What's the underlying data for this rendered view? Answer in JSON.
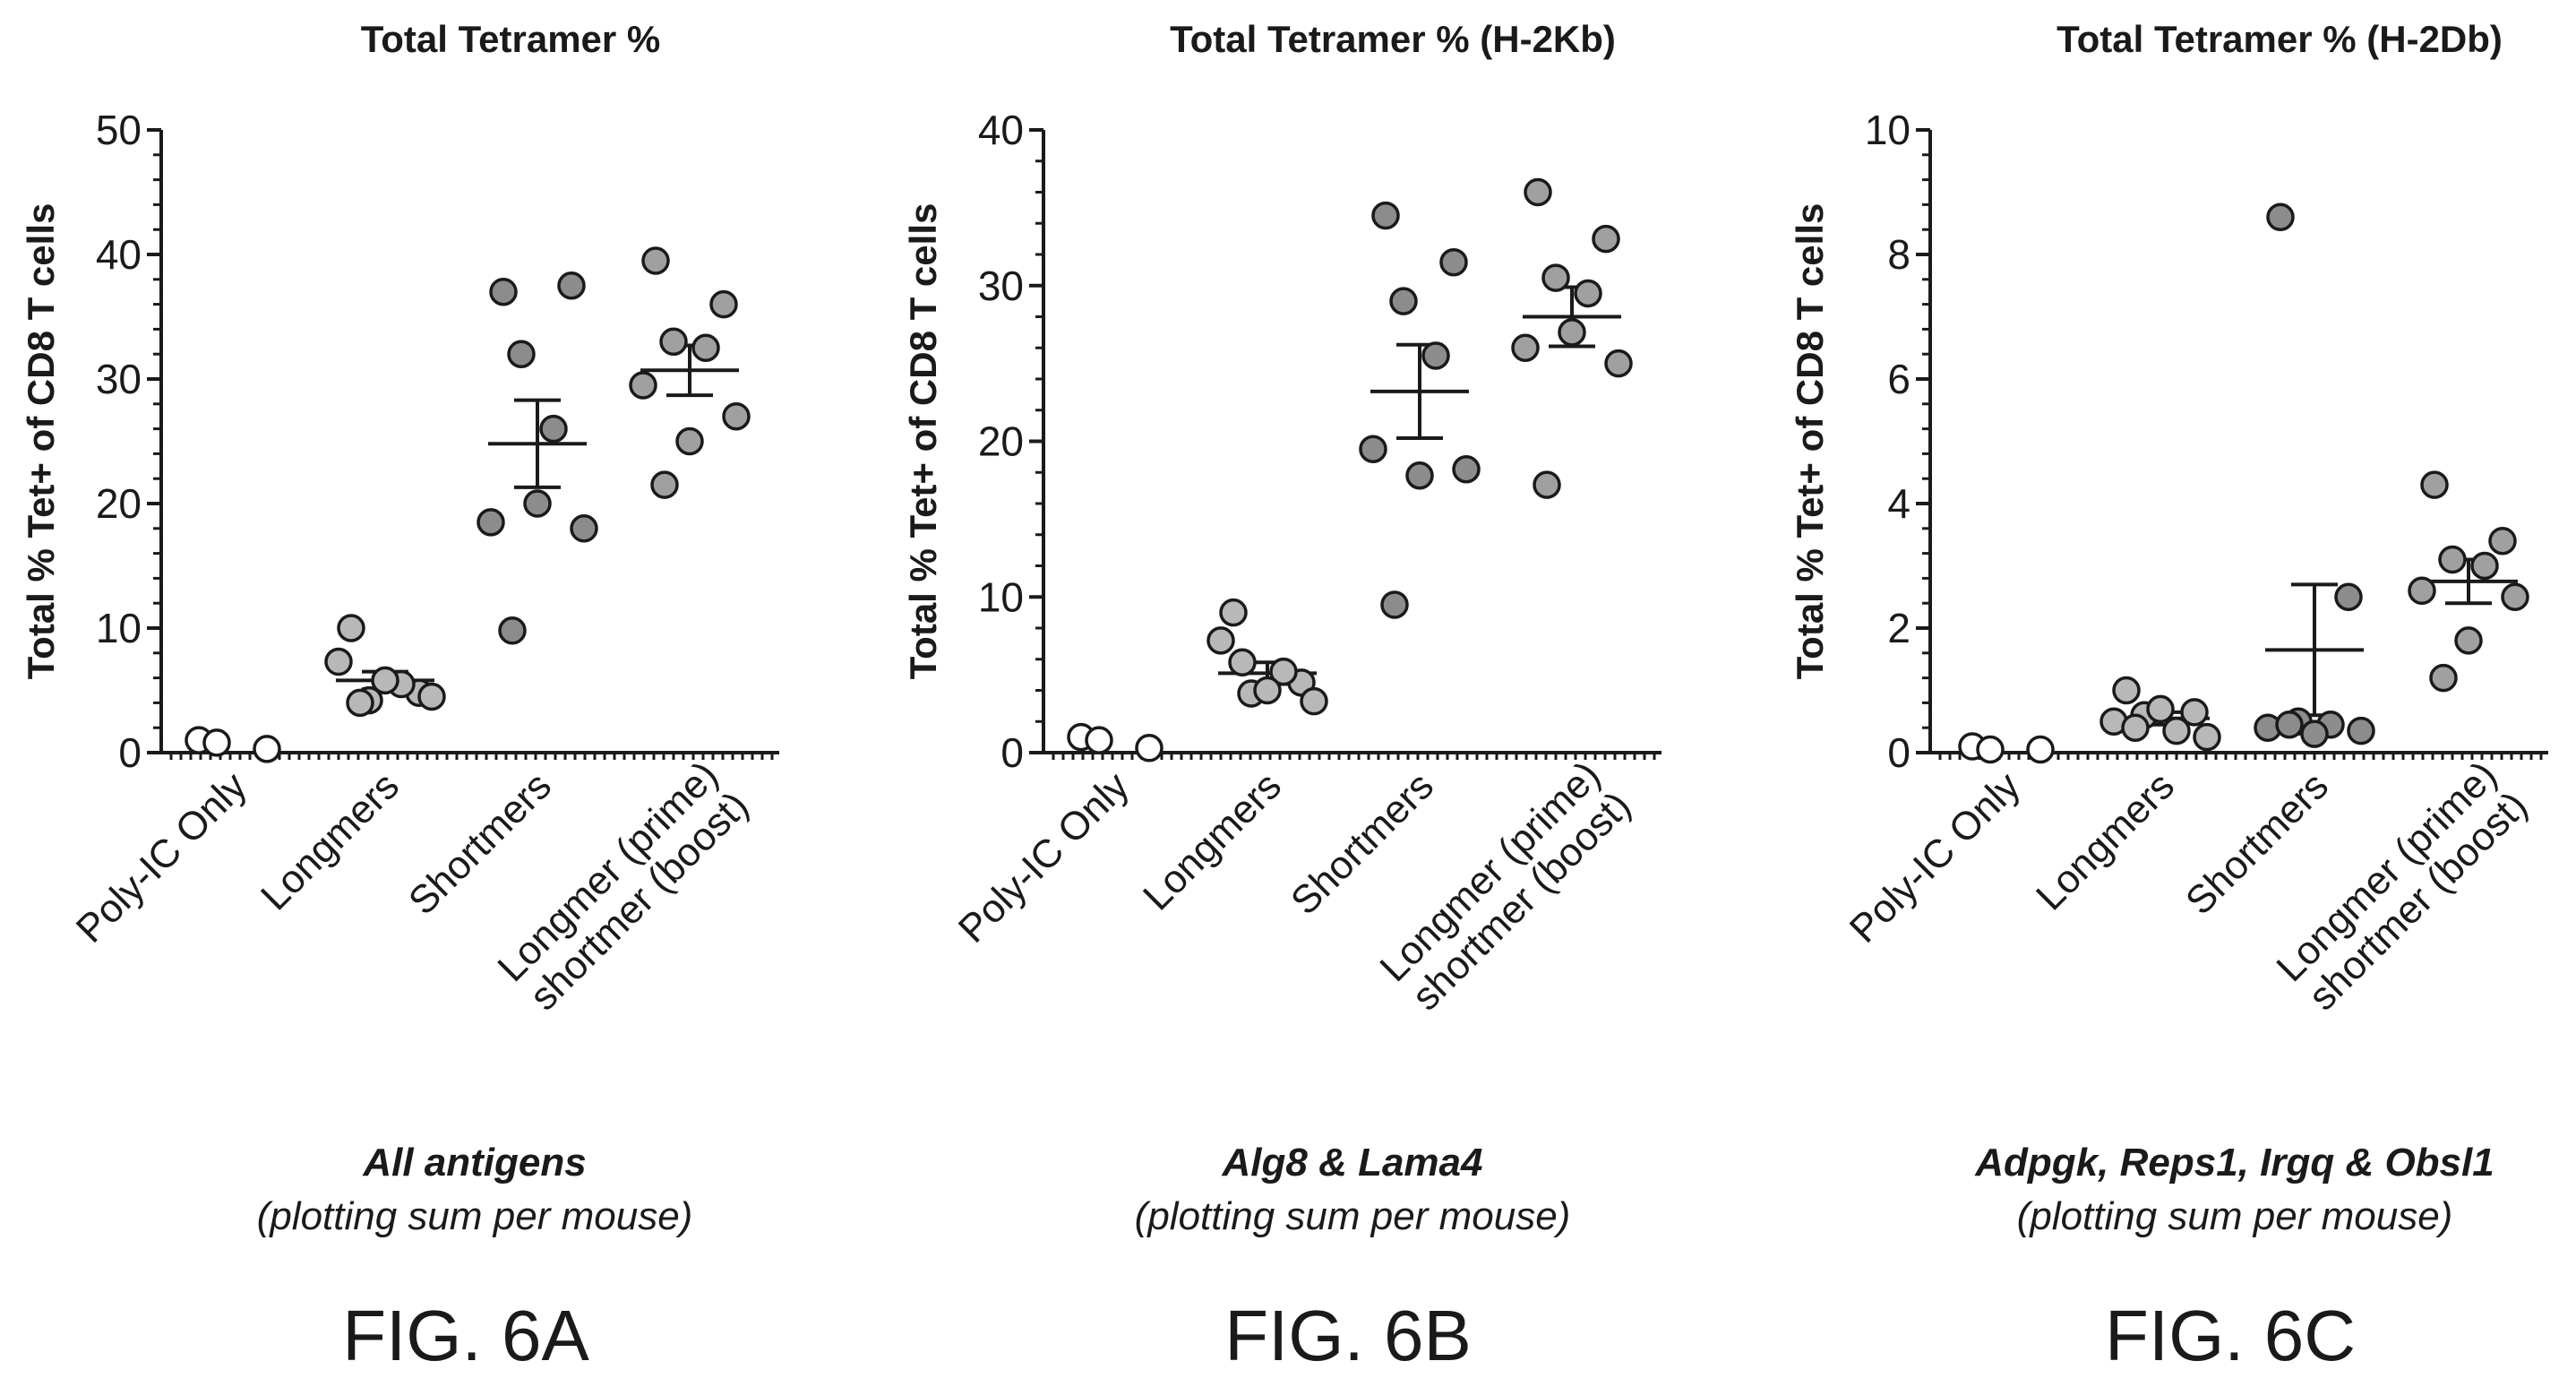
{
  "styles": {
    "ink": "#1a1a1a",
    "background": "#ffffff",
    "dot_fills": [
      "#ffffff",
      "#b8b8b8",
      "#8c8c8c",
      "#a0a0a0"
    ]
  },
  "chart_data": [
    {
      "type": "scatter",
      "figure_label": "FIG. 6A",
      "title": "Total Tetramer %",
      "ylabel": "Total % Tet+ of CD8 T cells",
      "xlabel": "",
      "ylim": [
        0,
        50
      ],
      "yticks": [
        0,
        10,
        20,
        30,
        40,
        50
      ],
      "grid": false,
      "caption": {
        "main": "All antigens",
        "sub": "(plotting sum per mouse)"
      },
      "categories": [
        "Poly-IC Only",
        "Longmers",
        "Shortmers",
        "Longmer (prime) shortmer (boost)"
      ],
      "category_label_lines": [
        [
          "Poly-IC Only"
        ],
        [
          "Longmers"
        ],
        [
          "Shortmers"
        ],
        [
          "Longmer (prime)",
          "shortmer (boost)"
        ]
      ],
      "groups": [
        {
          "category": "Poly-IC Only",
          "values": [
            1.0,
            0.3,
            0.8
          ],
          "mean": null,
          "sem": null
        },
        {
          "category": "Longmers",
          "values": [
            10.0,
            4.8,
            4.2,
            5.5,
            7.3,
            4.5,
            5.8,
            4.0
          ],
          "mean": 5.8,
          "sem": 0.7
        },
        {
          "category": "Shortmers",
          "values": [
            37.0,
            37.5,
            32.0,
            26.0,
            18.5,
            18.0,
            20.0,
            9.8
          ],
          "mean": 24.8,
          "sem": 3.5
        },
        {
          "category": "Longmer (prime) shortmer (boost)",
          "values": [
            39.5,
            36.0,
            33.0,
            32.5,
            29.5,
            27.0,
            25.0,
            21.5
          ],
          "mean": 30.7,
          "sem": 2.0
        }
      ]
    },
    {
      "type": "scatter",
      "figure_label": "FIG. 6B",
      "title": "Total Tetramer % (H-2Kb)",
      "ylabel": "Total % Tet+ of CD8 T cells",
      "xlabel": "",
      "ylim": [
        0,
        40
      ],
      "yticks": [
        0,
        10,
        20,
        30,
        40
      ],
      "grid": false,
      "caption": {
        "main": "Alg8 & Lama4",
        "sub": "(plotting sum per mouse)"
      },
      "categories": [
        "Poly-IC Only",
        "Longmers",
        "Shortmers",
        "Longmer (prime) shortmer (boost)"
      ],
      "category_label_lines": [
        [
          "Poly-IC Only"
        ],
        [
          "Longmers"
        ],
        [
          "Shortmers"
        ],
        [
          "Longmer (prime)",
          "shortmer (boost)"
        ]
      ],
      "groups": [
        {
          "category": "Poly-IC Only",
          "values": [
            1.0,
            0.3,
            0.8
          ],
          "mean": null,
          "sem": null
        },
        {
          "category": "Longmers",
          "values": [
            9.0,
            4.5,
            3.8,
            5.2,
            7.2,
            3.3,
            4.0,
            5.8
          ],
          "mean": 5.1,
          "sem": 0.7
        },
        {
          "category": "Shortmers",
          "values": [
            34.5,
            31.5,
            29.0,
            25.5,
            19.5,
            18.2,
            17.8,
            9.5
          ],
          "mean": 23.2,
          "sem": 3.0
        },
        {
          "category": "Longmer (prime) shortmer (boost)",
          "values": [
            36.0,
            33.0,
            30.5,
            29.5,
            26.0,
            25.0,
            27.0,
            17.2
          ],
          "mean": 28.0,
          "sem": 1.9
        }
      ]
    },
    {
      "type": "scatter",
      "figure_label": "FIG. 6C",
      "title": "Total Tetramer % (H-2Db)",
      "ylabel": "Total % Tet+ of CD8 T cells",
      "xlabel": "",
      "ylim": [
        0,
        10
      ],
      "yticks": [
        0,
        2,
        4,
        6,
        8,
        10
      ],
      "grid": false,
      "caption": {
        "main": "Adpgk, Reps1, Irgq & Obsl1",
        "sub": "(plotting sum per mouse)"
      },
      "categories": [
        "Poly-IC Only",
        "Longmers",
        "Shortmers",
        "Longmer (prime) shortmer (boost)"
      ],
      "category_label_lines": [
        [
          "Poly-IC Only"
        ],
        [
          "Longmers"
        ],
        [
          "Shortmers"
        ],
        [
          "Longmer (prime)",
          "shortmer (boost)"
        ]
      ],
      "groups": [
        {
          "category": "Poly-IC Only",
          "values": [
            0.1,
            0.05,
            0.05
          ],
          "mean": null,
          "sem": null
        },
        {
          "category": "Longmers",
          "values": [
            1.0,
            0.65,
            0.6,
            0.35,
            0.5,
            0.25,
            0.7,
            0.4
          ],
          "mean": 0.55,
          "sem": 0.1
        },
        {
          "category": "Shortmers",
          "values": [
            8.6,
            2.5,
            0.5,
            0.45,
            0.4,
            0.35,
            0.3,
            0.45
          ],
          "mean": 1.65,
          "sem": 1.05
        },
        {
          "category": "Longmer (prime) shortmer (boost)",
          "values": [
            4.3,
            3.4,
            3.1,
            3.0,
            2.6,
            2.5,
            1.8,
            1.2
          ],
          "mean": 2.75,
          "sem": 0.35
        }
      ]
    }
  ]
}
